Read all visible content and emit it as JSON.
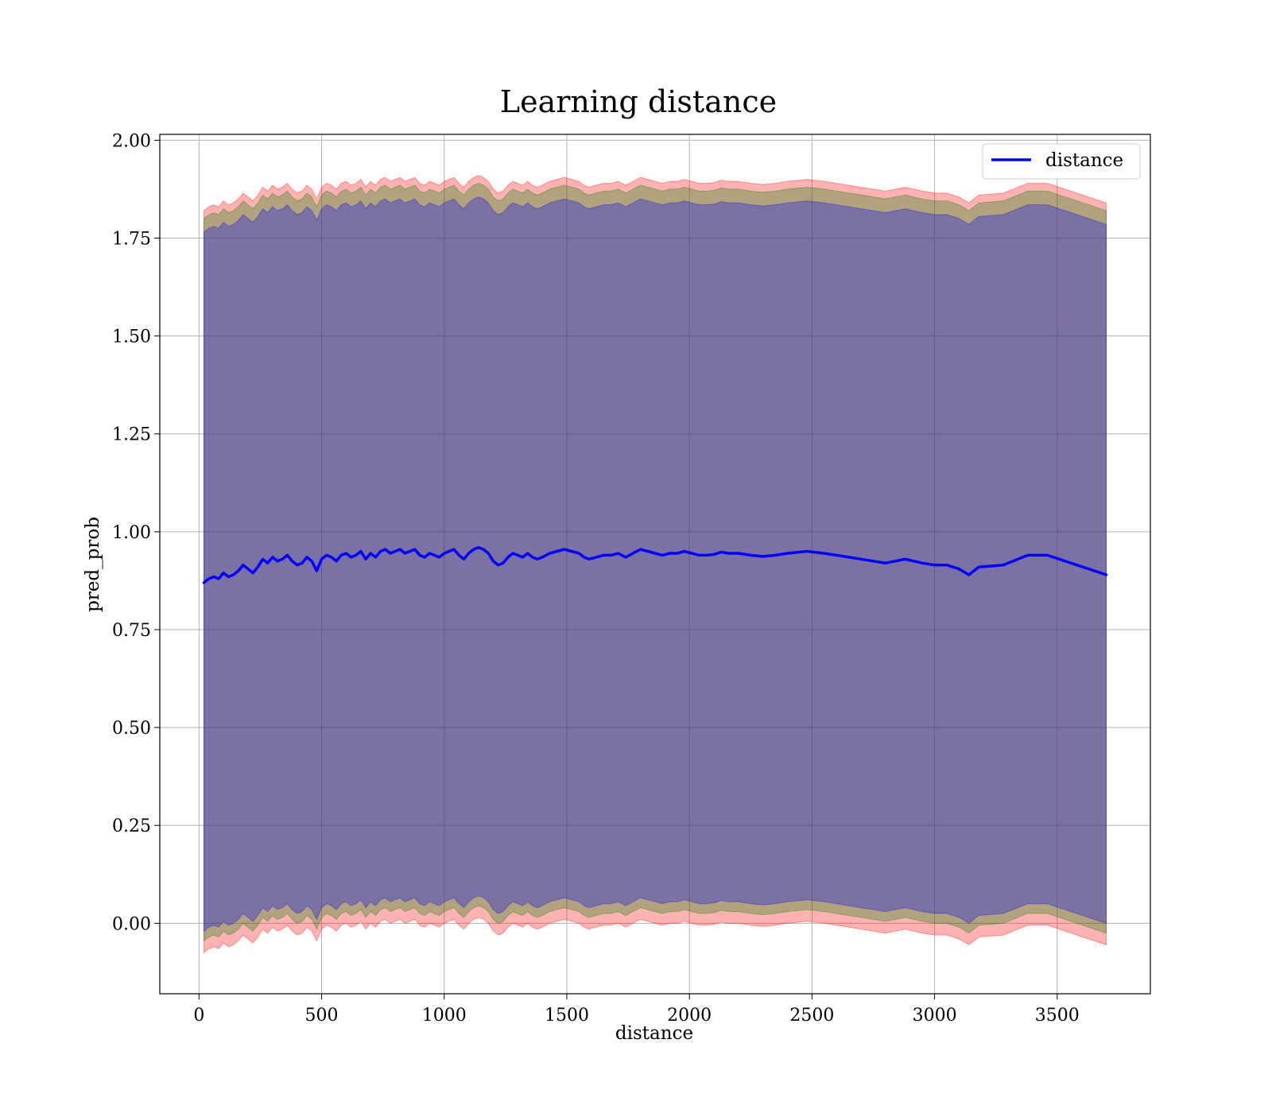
{
  "chart_data": {
    "type": "line",
    "title": "Learning distance",
    "xlabel": "distance",
    "ylabel": "pred_prob",
    "xlim": [
      -160,
      3880
    ],
    "ylim": [
      -0.18,
      2.015
    ],
    "xticks": [
      0,
      500,
      1000,
      1500,
      2000,
      2500,
      3000,
      3500
    ],
    "yticks": [
      0.0,
      0.25,
      0.5,
      0.75,
      1.0,
      1.25,
      1.5,
      1.75,
      2.0
    ],
    "xtick_labels": [
      "0",
      "500",
      "1000",
      "1500",
      "2000",
      "2500",
      "3000",
      "3500"
    ],
    "ytick_labels": [
      "0.00",
      "0.25",
      "0.50",
      "0.75",
      "1.00",
      "1.25",
      "1.50",
      "1.75",
      "2.00"
    ],
    "grid": true,
    "legend_position": "top-right",
    "series": [
      {
        "name": "distance",
        "color": "#0000ff",
        "x": [
          20,
          40,
          60,
          80,
          100,
          120,
          140,
          160,
          180,
          200,
          220,
          240,
          260,
          280,
          300,
          320,
          340,
          360,
          380,
          400,
          420,
          440,
          460,
          480,
          500,
          520,
          540,
          560,
          580,
          600,
          620,
          640,
          660,
          680,
          700,
          720,
          740,
          760,
          780,
          800,
          820,
          840,
          860,
          880,
          900,
          920,
          940,
          960,
          980,
          1000,
          1020,
          1040,
          1060,
          1080,
          1100,
          1120,
          1140,
          1160,
          1180,
          1200,
          1220,
          1240,
          1260,
          1280,
          1300,
          1320,
          1340,
          1360,
          1380,
          1400,
          1430,
          1460,
          1490,
          1520,
          1550,
          1570,
          1590,
          1620,
          1650,
          1680,
          1710,
          1740,
          1770,
          1800,
          1830,
          1860,
          1890,
          1920,
          1950,
          1980,
          2010,
          2040,
          2070,
          2100,
          2130,
          2160,
          2200,
          2250,
          2300,
          2350,
          2400,
          2480,
          2550,
          2600,
          2700,
          2800,
          2880,
          2950,
          3000,
          3050,
          3100,
          3140,
          3180,
          3280,
          3380,
          3460,
          3700
        ],
        "values": [
          0.87,
          0.88,
          0.885,
          0.88,
          0.895,
          0.885,
          0.89,
          0.9,
          0.915,
          0.905,
          0.895,
          0.91,
          0.93,
          0.92,
          0.935,
          0.925,
          0.93,
          0.94,
          0.925,
          0.915,
          0.92,
          0.935,
          0.925,
          0.9,
          0.93,
          0.94,
          0.935,
          0.925,
          0.94,
          0.945,
          0.935,
          0.94,
          0.95,
          0.93,
          0.945,
          0.935,
          0.95,
          0.955,
          0.945,
          0.95,
          0.955,
          0.945,
          0.95,
          0.955,
          0.94,
          0.935,
          0.945,
          0.94,
          0.935,
          0.945,
          0.95,
          0.955,
          0.94,
          0.93,
          0.945,
          0.955,
          0.96,
          0.955,
          0.945,
          0.925,
          0.915,
          0.92,
          0.935,
          0.945,
          0.94,
          0.935,
          0.945,
          0.935,
          0.93,
          0.935,
          0.945,
          0.95,
          0.955,
          0.95,
          0.945,
          0.935,
          0.93,
          0.935,
          0.94,
          0.94,
          0.945,
          0.935,
          0.945,
          0.955,
          0.95,
          0.945,
          0.94,
          0.945,
          0.945,
          0.95,
          0.945,
          0.94,
          0.94,
          0.942,
          0.948,
          0.945,
          0.945,
          0.94,
          0.937,
          0.94,
          0.945,
          0.95,
          0.945,
          0.94,
          0.93,
          0.92,
          0.93,
          0.92,
          0.915,
          0.915,
          0.905,
          0.89,
          0.91,
          0.915,
          0.94,
          0.94,
          0.89
        ]
      }
    ],
    "bands": [
      {
        "color": "#ff0000",
        "opacity": 0.3,
        "lower_offset": -0.945,
        "upper_offset": 0.95
      },
      {
        "color": "#008000",
        "opacity": 0.3,
        "lower_offset": -0.915,
        "upper_offset": 0.93
      },
      {
        "color": "#0000ff",
        "opacity": 0.3,
        "lower_offset": -0.89,
        "upper_offset": 0.895
      }
    ]
  }
}
